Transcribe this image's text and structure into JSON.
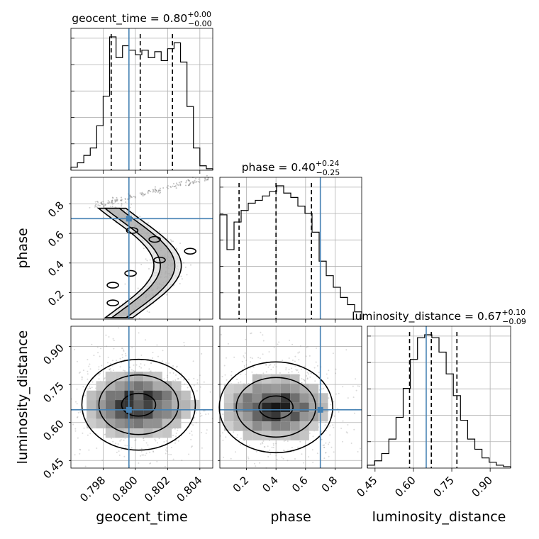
{
  "colors": {
    "truth": "#4682b4",
    "line": "#000000",
    "grid": "#b0b0b0"
  },
  "chart_data": {
    "type": "corner",
    "parameters": [
      "geocent_time",
      "phase",
      "luminosity_distance"
    ],
    "truths": {
      "geocent_time": 0.7996,
      "phase": 0.7,
      "luminosity_distance": 0.65
    },
    "ranges": {
      "geocent_time": [
        0.796,
        0.8048
      ],
      "phase": [
        0.02,
        0.98
      ],
      "luminosity_distance": [
        0.42,
        0.98
      ]
    },
    "titles": [
      {
        "name": "geocent_time",
        "median": "0.80",
        "plus": "+0.00",
        "minus": "−0.00"
      },
      {
        "name": "phase",
        "median": "0.40",
        "plus": "+0.24",
        "minus": "−0.25"
      },
      {
        "name": "luminosity_distance",
        "median": "0.67",
        "plus": "+0.10",
        "minus": "−0.09"
      }
    ],
    "quantiles": {
      "geocent_time": [
        0.7985,
        0.8003,
        0.8023
      ],
      "phase": [
        0.15,
        0.4,
        0.64
      ],
      "luminosity_distance": [
        0.585,
        0.67,
        0.77
      ]
    },
    "ticks": {
      "geocent_time": [
        0.798,
        0.8,
        0.802,
        0.804
      ],
      "phase_y": [
        0.2,
        0.4,
        0.6,
        0.8
      ],
      "phase_x": [
        0.2,
        0.4,
        0.6,
        0.8
      ],
      "luminosity_distance": [
        0.45,
        0.6,
        0.75,
        0.9
      ]
    },
    "tick_labels": {
      "geocent_time": [
        "0.798",
        "0.800",
        "0.802",
        "0.804"
      ],
      "phase": [
        "0.2",
        "0.4",
        "0.6",
        "0.8"
      ],
      "luminosity_distance": [
        "0.45",
        "0.60",
        "0.75",
        "0.90"
      ]
    },
    "histograms": {
      "geocent_time": {
        "bin_edges": [
          0.796,
          0.7964,
          0.7968,
          0.7972,
          0.7976,
          0.798,
          0.7984,
          0.7988,
          0.7992,
          0.7996,
          0.8,
          0.8004,
          0.8008,
          0.8012,
          0.8016,
          0.802,
          0.8024,
          0.8028,
          0.8032,
          0.8036,
          0.804,
          0.8044,
          0.8048
        ],
        "counts": [
          0.02,
          0.05,
          0.1,
          0.15,
          0.3,
          0.5,
          0.9,
          0.76,
          0.84,
          0.81,
          0.78,
          0.81,
          0.76,
          0.8,
          0.74,
          0.82,
          0.86,
          0.73,
          0.43,
          0.15,
          0.03,
          0.01
        ]
      },
      "phase": {
        "bin_edges": [
          0.02,
          0.068,
          0.116,
          0.164,
          0.212,
          0.26,
          0.308,
          0.356,
          0.404,
          0.452,
          0.5,
          0.548,
          0.596,
          0.644,
          0.692,
          0.74,
          0.788,
          0.836,
          0.884,
          0.932,
          0.98
        ],
        "counts": [
          0.72,
          0.48,
          0.67,
          0.75,
          0.8,
          0.82,
          0.85,
          0.88,
          0.92,
          0.87,
          0.84,
          0.78,
          0.73,
          0.6,
          0.4,
          0.3,
          0.22,
          0.15,
          0.1,
          0.05
        ]
      },
      "luminosity_distance": {
        "bin_edges": [
          0.42,
          0.448,
          0.476,
          0.504,
          0.532,
          0.56,
          0.588,
          0.616,
          0.644,
          0.672,
          0.7,
          0.728,
          0.756,
          0.784,
          0.812,
          0.84,
          0.868,
          0.896,
          0.924,
          0.952,
          0.98
        ],
        "counts": [
          0.02,
          0.05,
          0.1,
          0.2,
          0.35,
          0.55,
          0.75,
          0.9,
          0.92,
          0.9,
          0.8,
          0.65,
          0.5,
          0.33,
          0.2,
          0.13,
          0.07,
          0.04,
          0.02,
          0.01
        ]
      }
    },
    "contour_levels": 3,
    "grid": true
  }
}
